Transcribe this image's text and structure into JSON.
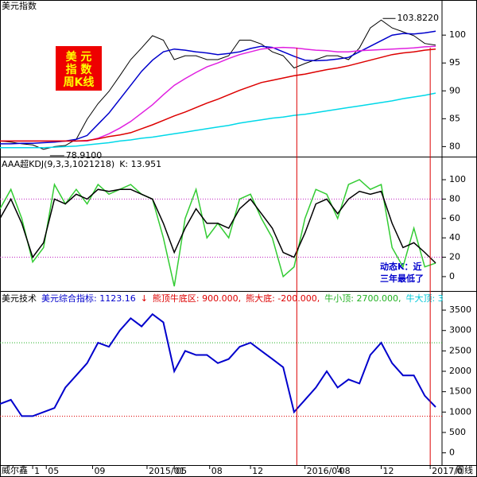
{
  "chart_data": [
    {
      "type": "line",
      "title": "美元指数",
      "box_text": [
        "美 元",
        "指 数",
        "周K线"
      ],
      "annotations": [
        {
          "text": "103.8220",
          "x": 140
        },
        {
          "text": "78.9100",
          "x": 16
        }
      ],
      "x": [
        0,
        4,
        8,
        12,
        16,
        20,
        24,
        28,
        32,
        36,
        40,
        44,
        48,
        52,
        56,
        60,
        64,
        68,
        72,
        76,
        80,
        84,
        88,
        92,
        96,
        100,
        104,
        108,
        112,
        116,
        120,
        124,
        128,
        132,
        136,
        140,
        144,
        148,
        152,
        156,
        160
      ],
      "xlim": [
        0,
        160
      ],
      "ylim": [
        78.2,
        106.3
      ],
      "yticks": [
        80,
        85,
        90,
        95,
        100
      ],
      "vlines": [
        109,
        158
      ],
      "series": [
        {
          "color": "#000000",
          "values": [
            81,
            80.8,
            80.5,
            80.3,
            79.5,
            80,
            80.2,
            81.3,
            84.9,
            87.7,
            89.9,
            92.7,
            95.6,
            97.7,
            99.9,
            99.1,
            95.6,
            96.3,
            96.3,
            95.6,
            95.6,
            96.3,
            99.1,
            99.1,
            98.4,
            97,
            96.3,
            94.1,
            94.9,
            95.6,
            96.3,
            96.3,
            95.6,
            97.7,
            101.3,
            102.7,
            101.3,
            100.6,
            99.9,
            98.5,
            98.2
          ]
        },
        {
          "color": "#0000cc",
          "values": [
            80.5,
            80.5,
            80.6,
            80.6,
            80.7,
            80.8,
            81,
            81.3,
            82,
            84,
            86,
            88.5,
            91,
            93.5,
            95.5,
            97,
            97.5,
            97.3,
            97,
            96.8,
            96.5,
            96.7,
            97,
            97.6,
            98,
            97.8,
            97,
            96.2,
            95.5,
            95.4,
            95.5,
            95.7,
            96,
            97,
            98,
            99,
            100,
            100.3,
            100.2,
            100.4,
            100.7
          ]
        },
        {
          "color": "#e020e0",
          "values": [
            81,
            81,
            81,
            81,
            81,
            81,
            81,
            81,
            81,
            81.5,
            82.3,
            83.3,
            84.5,
            86,
            87.5,
            89.3,
            91,
            92.2,
            93.3,
            94.3,
            95,
            95.8,
            96.5,
            97,
            97.5,
            97.7,
            97.8,
            97.7,
            97.5,
            97.3,
            97.2,
            97,
            97,
            97.2,
            97.3,
            97.4,
            97.5,
            97.6,
            97.7,
            97.9,
            98
          ]
        },
        {
          "color": "#dd0000",
          "values": [
            81,
            81,
            81,
            81,
            81,
            81,
            81,
            81,
            81.1,
            81.4,
            81.8,
            82.1,
            82.5,
            83.2,
            83.9,
            84.7,
            85.5,
            86.2,
            87,
            87.8,
            88.5,
            89.3,
            90.1,
            90.8,
            91.5,
            91.9,
            92.3,
            92.7,
            93,
            93.4,
            93.8,
            94.1,
            94.5,
            95,
            95.5,
            96,
            96.5,
            96.8,
            97,
            97.3,
            97.5
          ]
        },
        {
          "color": "#00d8e8",
          "values": [
            79.8,
            79.8,
            79.8,
            79.8,
            79.8,
            79.9,
            80,
            80.1,
            80.3,
            80.5,
            80.7,
            81,
            81.2,
            81.5,
            81.7,
            82,
            82.3,
            82.6,
            82.9,
            83.2,
            83.5,
            83.8,
            84.2,
            84.5,
            84.8,
            85.1,
            85.3,
            85.6,
            85.8,
            86.1,
            86.4,
            86.7,
            87,
            87.3,
            87.6,
            87.9,
            88.2,
            88.6,
            88.9,
            89.2,
            89.6
          ]
        }
      ]
    },
    {
      "type": "line",
      "header": [
        {
          "text": "AAA超KDJ(9,3,3,1021218)",
          "color": "#000000"
        },
        {
          "text": "K: 13.951",
          "color": "#000000"
        }
      ],
      "annotation": [
        "动态K：近",
        "三年最低了"
      ],
      "x": [
        0,
        4,
        8,
        12,
        16,
        20,
        24,
        28,
        32,
        36,
        40,
        44,
        48,
        52,
        56,
        60,
        64,
        68,
        72,
        76,
        80,
        84,
        88,
        92,
        96,
        100,
        104,
        108,
        112,
        116,
        120,
        124,
        128,
        132,
        136,
        140,
        144,
        148,
        152,
        156,
        160
      ],
      "xlim": [
        0,
        160
      ],
      "ylim": [
        -14,
        123
      ],
      "yticks": [
        0,
        20,
        40,
        60,
        80,
        100
      ],
      "hlines": [
        {
          "value": 20,
          "color": "#c020c0"
        },
        {
          "value": 80,
          "color": "#c020c0"
        }
      ],
      "series": [
        {
          "color": "#33cc33",
          "values": [
            70,
            90,
            60,
            15,
            30,
            95,
            75,
            90,
            75,
            95,
            85,
            90,
            95,
            85,
            80,
            40,
            -10,
            60,
            90,
            40,
            55,
            40,
            80,
            85,
            60,
            40,
            0,
            10,
            60,
            90,
            85,
            60,
            95,
            100,
            90,
            95,
            30,
            10,
            50,
            10,
            14
          ]
        },
        {
          "color": "#000000",
          "values": [
            60,
            80,
            55,
            20,
            35,
            80,
            75,
            85,
            80,
            90,
            88,
            90,
            90,
            85,
            80,
            55,
            25,
            50,
            70,
            55,
            55,
            50,
            70,
            80,
            65,
            50,
            25,
            20,
            45,
            75,
            80,
            65,
            80,
            88,
            85,
            88,
            55,
            30,
            35,
            25,
            14
          ]
        }
      ]
    },
    {
      "type": "line",
      "header": [
        {
          "text": "美元技术",
          "color": "#000000"
        },
        {
          "text": "美元综合指标: 1123.16",
          "color": "#0000cc"
        },
        {
          "text": "↓",
          "color": "#dd0000"
        },
        {
          "text": "熊顶牛底区: 900.000,",
          "color": "#dd0000"
        },
        {
          "text": "熊大底: -200.000,",
          "color": "#dd0000"
        },
        {
          "text": "牛小顶: 2700.000,",
          "color": "#20b020"
        },
        {
          "text": "牛大顶: 3",
          "color": "#00c8d8"
        }
      ],
      "x": [
        0,
        4,
        8,
        12,
        16,
        20,
        24,
        28,
        32,
        36,
        40,
        44,
        48,
        52,
        56,
        60,
        64,
        68,
        72,
        76,
        80,
        84,
        88,
        92,
        96,
        100,
        104,
        108,
        112,
        116,
        120,
        124,
        128,
        132,
        136,
        140,
        144,
        148,
        152,
        156,
        160
      ],
      "xlim": [
        0,
        160
      ],
      "ylim": [
        -300,
        3950
      ],
      "yticks": [
        0,
        500,
        1000,
        1500,
        2000,
        2500,
        3000,
        3500
      ],
      "hlines": [
        {
          "value": 900,
          "color": "#dd0000"
        },
        {
          "value": 2700,
          "color": "#20b020"
        }
      ],
      "xticks": [
        {
          "value": 12,
          "label": "1"
        },
        {
          "value": 17,
          "label": "05"
        },
        {
          "value": 34,
          "label": "09"
        },
        {
          "value": 54,
          "label": "2015/01"
        },
        {
          "value": 64,
          "label": "05"
        },
        {
          "value": 77,
          "label": "08"
        },
        {
          "value": 92,
          "label": "12"
        },
        {
          "value": 112,
          "label": "2016/04"
        },
        {
          "value": 124,
          "label": "08"
        },
        {
          "value": 140,
          "label": "12"
        },
        {
          "value": 158,
          "label": "2017/0"
        }
      ],
      "footer_left": "威尔鑫",
      "xlabel": "周线",
      "series": [
        {
          "color": "#0000cc",
          "values": [
            1200,
            1300,
            900,
            900,
            1000,
            1100,
            1600,
            1900,
            2200,
            2700,
            2600,
            3000,
            3300,
            3100,
            3400,
            3200,
            2000,
            2500,
            2400,
            2400,
            2200,
            2300,
            2600,
            2700,
            2500,
            2300,
            2100,
            1000,
            1300,
            1600,
            2000,
            1600,
            1800,
            1700,
            2400,
            2700,
            2200,
            1900,
            1900,
            1400,
            1123
          ]
        }
      ]
    }
  ]
}
